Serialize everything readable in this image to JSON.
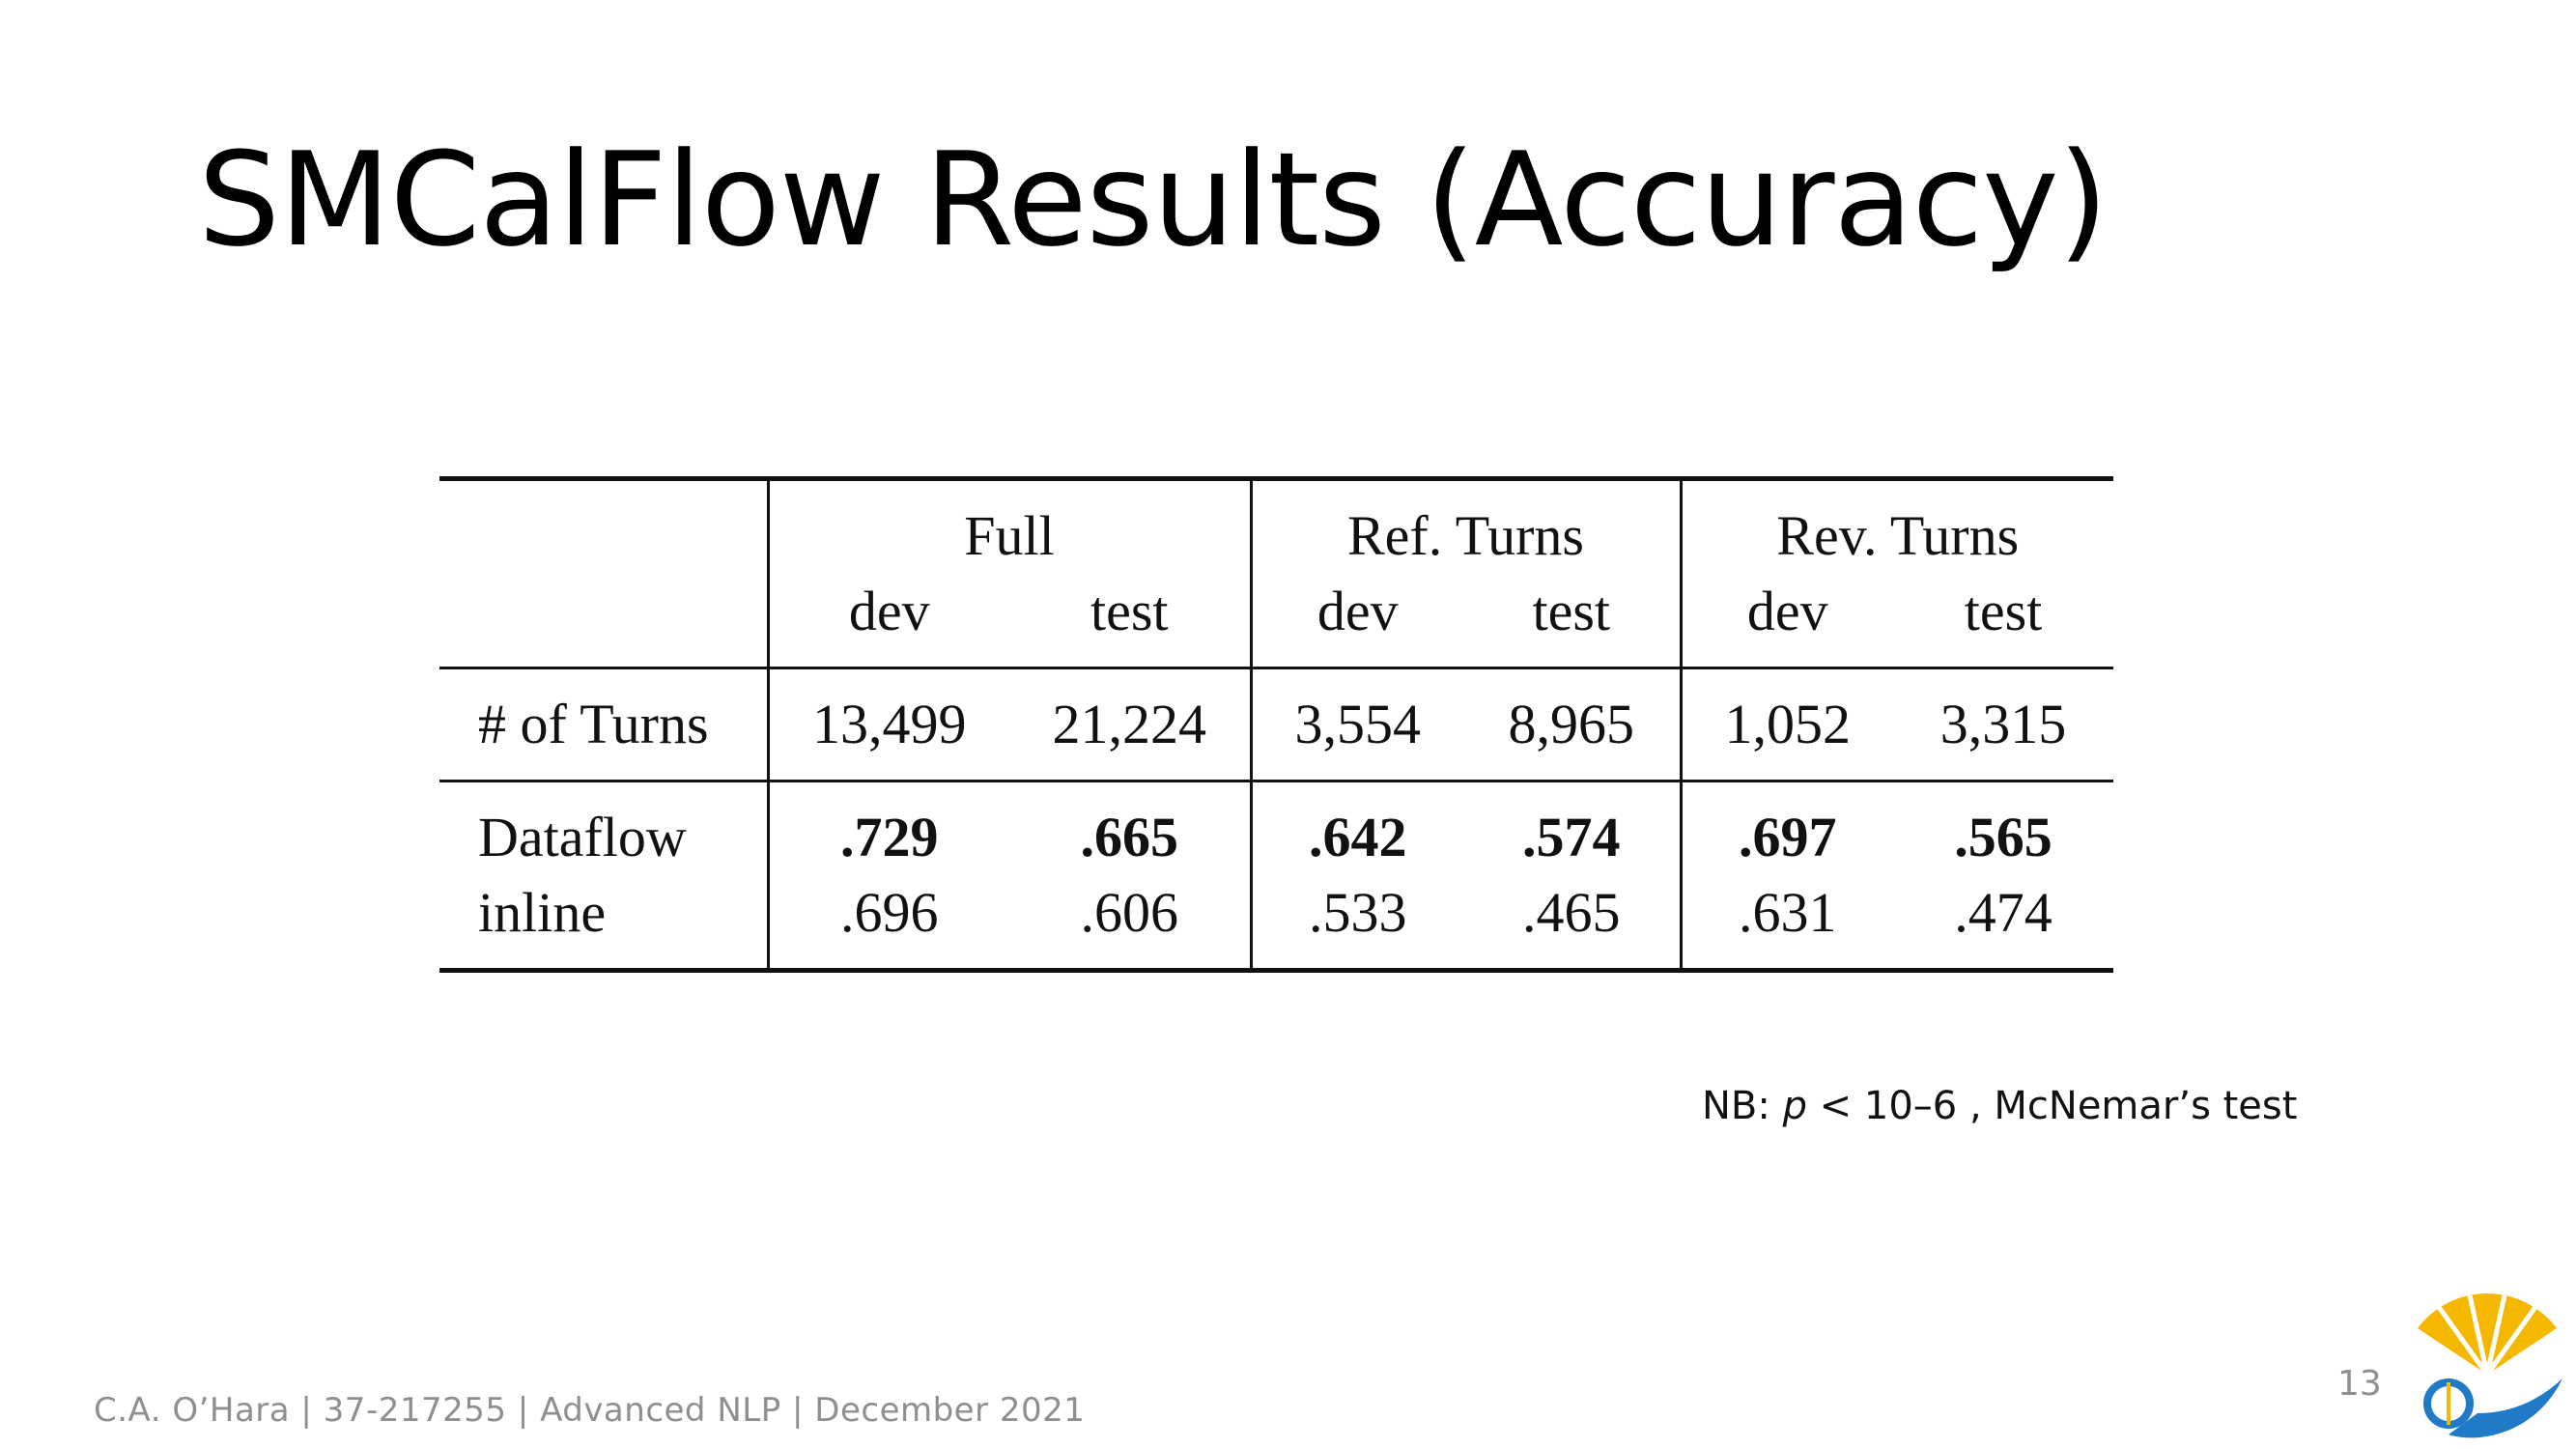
{
  "slide": {
    "title": "SMCalFlow Results (Accuracy)",
    "page_number": "13",
    "footer": "C.A. O’Hara | 37-217255 | Advanced NLP | December 2021"
  },
  "table": {
    "groups": [
      "Full",
      "Ref. Turns",
      "Rev. Turns"
    ],
    "subheaders": [
      "dev",
      "test",
      "dev",
      "test",
      "dev",
      "test"
    ],
    "rows": [
      {
        "label": "# of Turns",
        "values": [
          "13,499",
          "21,224",
          "3,554",
          "8,965",
          "1,052",
          "3,315"
        ]
      },
      {
        "label": "Dataflow",
        "values": [
          ".729",
          ".665",
          ".642",
          ".574",
          ".697",
          ".565"
        ]
      },
      {
        "label": "inline",
        "values": [
          ".696",
          ".606",
          ".533",
          ".465",
          ".631",
          ".474"
        ]
      }
    ]
  },
  "note": {
    "prefix": "NB: ",
    "variable": "p",
    "condition": " < 10–6 , McNemar’s test"
  },
  "colors": {
    "text": "#000000",
    "muted": "#8f8f8f",
    "logo_gold": "#f5b800",
    "logo_blue": "#1f7ac8"
  }
}
